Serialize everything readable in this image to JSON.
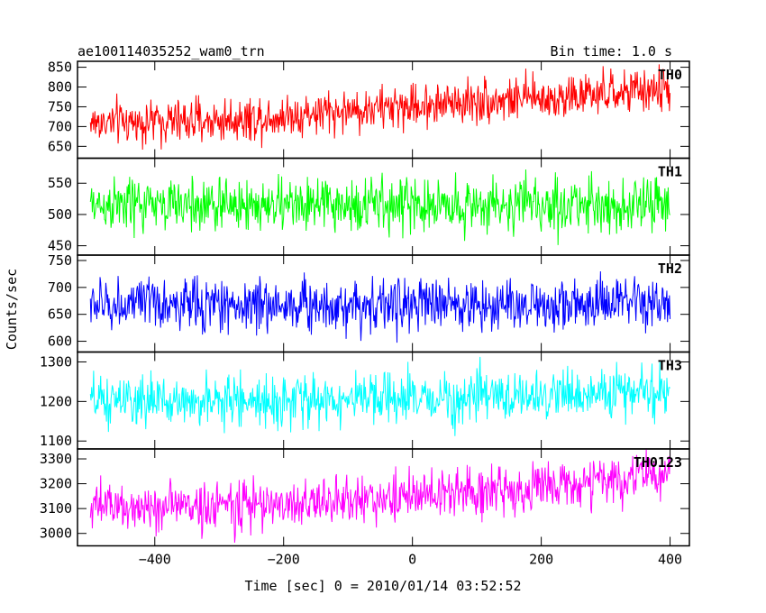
{
  "chart_data": {
    "type": "line",
    "title": "ae100114035252_wam0_trn",
    "subtitle": "Bin time: 1.0 s",
    "xlabel": "Time [sec] 0 = 2010/01/14 03:52:52",
    "ylabel": "Counts/sec",
    "xlim": [
      -520,
      430
    ],
    "x_ticks": [
      -400,
      -200,
      0,
      200,
      400
    ],
    "x_tick_labels": [
      "−400",
      "−200",
      "0",
      "200",
      "400"
    ],
    "grid": false,
    "panels": [
      {
        "name": "TH0",
        "color": "#ff0000",
        "ylim": [
          620,
          865
        ],
        "yticks": [
          650,
          700,
          750,
          800,
          850
        ],
        "trend": [
          [
            -500,
            710
          ],
          [
            -300,
            715
          ],
          [
            -100,
            740
          ],
          [
            100,
            765
          ],
          [
            250,
            775
          ],
          [
            400,
            795
          ]
        ],
        "amplitude": 28
      },
      {
        "name": "TH1",
        "color": "#00ff00",
        "ylim": [
          435,
          590
        ],
        "yticks": [
          450,
          500,
          550
        ],
        "trend": [
          [
            -500,
            515
          ],
          [
            400,
            515
          ]
        ],
        "amplitude": 22
      },
      {
        "name": "TH2",
        "color": "#0000ff",
        "ylim": [
          580,
          760
        ],
        "yticks": [
          600,
          650,
          700,
          750
        ],
        "trend": [
          [
            -500,
            668
          ],
          [
            400,
            668
          ]
        ],
        "amplitude": 25
      },
      {
        "name": "TH3",
        "color": "#00ffff",
        "ylim": [
          1080,
          1325
        ],
        "yticks": [
          1100,
          1200,
          1300
        ],
        "trend": [
          [
            -500,
            1198
          ],
          [
            0,
            1205
          ],
          [
            400,
            1225
          ]
        ],
        "amplitude": 32
      },
      {
        "name": "TH0123",
        "color": "#ff00ff",
        "ylim": [
          2950,
          3340
        ],
        "yticks": [
          3000,
          3100,
          3200,
          3300
        ],
        "trend": [
          [
            -500,
            3105
          ],
          [
            -200,
            3115
          ],
          [
            0,
            3150
          ],
          [
            200,
            3185
          ],
          [
            400,
            3240
          ]
        ],
        "amplitude": 50
      }
    ]
  }
}
